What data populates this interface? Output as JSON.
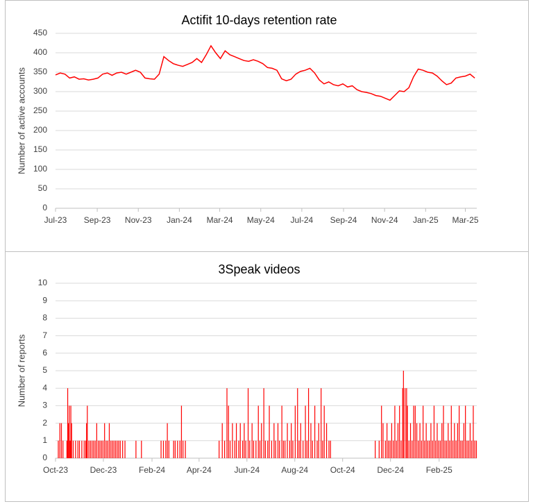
{
  "chart_data": [
    {
      "type": "line",
      "title": "Actifit 10-days retention rate",
      "y_label": "Number of active accounts",
      "color": "#ff0000",
      "grid": true,
      "xlim": [
        0,
        626
      ],
      "ylim": [
        0,
        450
      ],
      "yticks": [
        0,
        50,
        100,
        150,
        200,
        250,
        300,
        350,
        400,
        450
      ],
      "xticks": [
        {
          "value": 0,
          "label": "Jul-23"
        },
        {
          "value": 62,
          "label": "Sep-23"
        },
        {
          "value": 123,
          "label": "Nov-23"
        },
        {
          "value": 184,
          "label": "Jan-24"
        },
        {
          "value": 244,
          "label": "Mar-24"
        },
        {
          "value": 305,
          "label": "May-24"
        },
        {
          "value": 366,
          "label": "Jul-24"
        },
        {
          "value": 428,
          "label": "Sep-24"
        },
        {
          "value": 489,
          "label": "Nov-24"
        },
        {
          "value": 550,
          "label": "Jan-25"
        },
        {
          "value": 609,
          "label": "Mar-25"
        }
      ],
      "x": [
        0,
        7,
        14,
        21,
        28,
        35,
        42,
        49,
        56,
        63,
        70,
        77,
        84,
        91,
        98,
        105,
        112,
        119,
        126,
        133,
        140,
        147,
        154,
        161,
        168,
        175,
        182,
        189,
        196,
        203,
        210,
        217,
        224,
        231,
        238,
        245,
        252,
        259,
        266,
        273,
        280,
        287,
        294,
        301,
        308,
        315,
        322,
        329,
        336,
        343,
        350,
        357,
        364,
        371,
        378,
        385,
        392,
        399,
        406,
        413,
        420,
        427,
        434,
        441,
        448,
        455,
        462,
        469,
        476,
        483,
        490,
        497,
        504,
        511,
        518,
        525,
        532,
        539,
        546,
        553,
        560,
        567,
        574,
        581,
        588,
        595,
        602,
        609,
        616,
        623
      ],
      "values": [
        343,
        348,
        345,
        335,
        338,
        332,
        333,
        330,
        332,
        335,
        345,
        348,
        342,
        348,
        350,
        345,
        350,
        355,
        350,
        335,
        333,
        332,
        345,
        390,
        380,
        372,
        368,
        365,
        370,
        375,
        385,
        375,
        395,
        418,
        400,
        385,
        405,
        395,
        390,
        385,
        380,
        378,
        382,
        378,
        372,
        362,
        360,
        355,
        333,
        328,
        332,
        345,
        352,
        355,
        360,
        348,
        330,
        320,
        325,
        318,
        315,
        320,
        312,
        315,
        305,
        300,
        298,
        295,
        290,
        288,
        283,
        278,
        290,
        302,
        300,
        310,
        338,
        358,
        355,
        350,
        348,
        340,
        328,
        318,
        322,
        335,
        338,
        340,
        345,
        335
      ]
    },
    {
      "type": "bar",
      "title": "3Speak videos",
      "y_label": "Number of reports",
      "color": "#ff0000",
      "grid": true,
      "xlim": [
        0,
        537
      ],
      "ylim": [
        0,
        10
      ],
      "yticks": [
        0,
        1,
        2,
        3,
        4,
        5,
        6,
        7,
        8,
        9,
        10
      ],
      "xticks": [
        {
          "value": 0,
          "label": "Oct-23"
        },
        {
          "value": 61,
          "label": "Dec-23"
        },
        {
          "value": 123,
          "label": "Feb-24"
        },
        {
          "value": 183,
          "label": "Apr-24"
        },
        {
          "value": 244,
          "label": "Jun-24"
        },
        {
          "value": 305,
          "label": "Aug-24"
        },
        {
          "value": 366,
          "label": "Oct-24"
        },
        {
          "value": 427,
          "label": "Dec-24"
        },
        {
          "value": 489,
          "label": "Feb-25"
        }
      ],
      "x": [
        3,
        5,
        7,
        9,
        14,
        15,
        16,
        17,
        18,
        19,
        20,
        22,
        25,
        28,
        30,
        33,
        36,
        38,
        39,
        40,
        42,
        44,
        46,
        48,
        50,
        52,
        54,
        56,
        58,
        60,
        62,
        64,
        66,
        68,
        70,
        72,
        74,
        76,
        78,
        80,
        82,
        85,
        88,
        102,
        109,
        134,
        137,
        140,
        142,
        144,
        150,
        152,
        155,
        158,
        160,
        162,
        165,
        208,
        212,
        215,
        218,
        220,
        222,
        225,
        228,
        230,
        233,
        235,
        238,
        240,
        242,
        245,
        247,
        250,
        252,
        255,
        258,
        260,
        262,
        265,
        267,
        270,
        272,
        275,
        278,
        280,
        283,
        285,
        288,
        290,
        292,
        295,
        298,
        300,
        302,
        305,
        308,
        310,
        312,
        315,
        318,
        320,
        322,
        325,
        327,
        330,
        333,
        335,
        338,
        340,
        342,
        345,
        348,
        350,
        407,
        412,
        415,
        417,
        420,
        422,
        424,
        426,
        428,
        430,
        432,
        434,
        436,
        438,
        440,
        442,
        443,
        445,
        447,
        448,
        450,
        452,
        454,
        456,
        458,
        460,
        462,
        464,
        466,
        468,
        470,
        472,
        474,
        476,
        478,
        480,
        482,
        484,
        486,
        488,
        490,
        492,
        494,
        496,
        498,
        500,
        502,
        504,
        506,
        508,
        510,
        512,
        514,
        516,
        518,
        520,
        522,
        524,
        526,
        528,
        530,
        532,
        534,
        536
      ],
      "values": [
        1,
        2,
        2,
        1,
        1,
        4,
        2,
        3,
        1,
        3,
        2,
        1,
        1,
        1,
        1,
        1,
        1,
        1,
        2,
        3,
        1,
        1,
        1,
        1,
        1,
        2,
        1,
        1,
        1,
        1,
        2,
        1,
        1,
        2,
        1,
        1,
        1,
        1,
        1,
        1,
        1,
        1,
        1,
        1,
        1,
        1,
        1,
        1,
        2,
        1,
        1,
        1,
        1,
        1,
        3,
        1,
        1,
        1,
        2,
        1,
        4,
        3,
        1,
        2,
        1,
        2,
        1,
        2,
        1,
        2,
        1,
        4,
        1,
        2,
        1,
        1,
        3,
        1,
        2,
        4,
        1,
        1,
        3,
        1,
        2,
        1,
        2,
        1,
        3,
        1,
        1,
        2,
        1,
        2,
        1,
        3,
        4,
        1,
        2,
        1,
        3,
        1,
        4,
        2,
        1,
        3,
        1,
        2,
        4,
        1,
        3,
        2,
        1,
        1,
        1,
        1,
        3,
        2,
        1,
        2,
        1,
        1,
        2,
        1,
        3,
        1,
        2,
        3,
        1,
        4,
        5,
        4,
        4,
        3,
        1,
        2,
        1,
        3,
        3,
        2,
        1,
        2,
        1,
        3,
        1,
        2,
        1,
        1,
        2,
        1,
        3,
        1,
        2,
        1,
        1,
        2,
        3,
        1,
        1,
        2,
        1,
        3,
        1,
        2,
        1,
        2,
        3,
        1,
        1,
        2,
        3,
        1,
        1,
        2,
        1,
        3,
        1,
        1
      ]
    }
  ]
}
